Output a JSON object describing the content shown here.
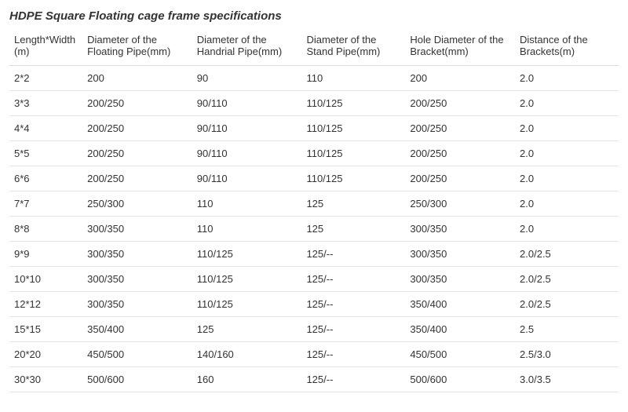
{
  "title": "HDPE Square Floating cage frame specifications",
  "table": {
    "columns": [
      "Length*Width(m)",
      "Diameter of the Floating Pipe(mm)",
      "Diameter of the Handrial Pipe(mm)",
      "Diameter of the Stand Pipe(mm)",
      "Hole Diameter of the Bracket(mm)",
      "Distance of the Brackets(m)"
    ],
    "rows": [
      [
        "2*2",
        "200",
        "90",
        "110",
        "200",
        "2.0"
      ],
      [
        "3*3",
        "200/250",
        "90/110",
        "110/125",
        "200/250",
        "2.0"
      ],
      [
        "4*4",
        "200/250",
        "90/110",
        "110/125",
        "200/250",
        "2.0"
      ],
      [
        "5*5",
        "200/250",
        "90/110",
        "110/125",
        "200/250",
        "2.0"
      ],
      [
        "6*6",
        "200/250",
        "90/110",
        "110/125",
        "200/250",
        "2.0"
      ],
      [
        "7*7",
        "250/300",
        "110",
        "125",
        "250/300",
        "2.0"
      ],
      [
        "8*8",
        "300/350",
        "110",
        "125",
        "300/350",
        "2.0"
      ],
      [
        "9*9",
        "300/350",
        "110/125",
        "125/--",
        "300/350",
        "2.0/2.5"
      ],
      [
        "10*10",
        "300/350",
        "110/125",
        "125/--",
        "300/350",
        "2.0/2.5"
      ],
      [
        "12*12",
        "300/350",
        "110/125",
        "125/--",
        "350/400",
        "2.0/2.5"
      ],
      [
        "15*15",
        "350/400",
        "125",
        "125/--",
        "350/400",
        "2.5"
      ],
      [
        "20*20",
        "450/500",
        "140/160",
        "125/--",
        "450/500",
        "2.5/3.0"
      ],
      [
        "30*30",
        "500/600",
        "160",
        "125/--",
        "500/600",
        "3.0/3.5"
      ]
    ]
  },
  "style": {
    "background_color": "#ffffff",
    "text_color": "#333333",
    "border_color": "#e5e5e5",
    "header_border_color": "#dcdcdc",
    "title_fontsize": 15,
    "cell_fontsize": 13
  }
}
